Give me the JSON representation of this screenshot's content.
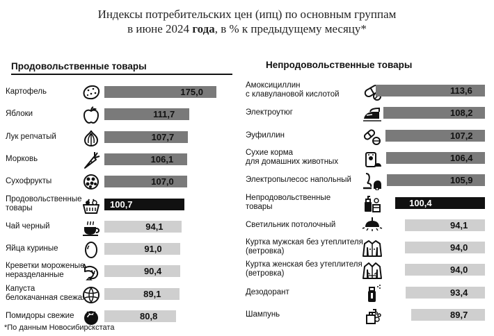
{
  "title": {
    "line1": "Индексы потребительских цен (ипц) по основным группам",
    "line2_pre": "в июне 2024 ",
    "line2_bold": "года",
    "line2_post": ", в % к предыдущему месяцу*"
  },
  "footnote": "*По данным Новосибирскстата",
  "colors": {
    "bar_dark_gray": "#7a7a7a",
    "bar_light_gray": "#cfcfcf",
    "bar_black": "#111111"
  },
  "chart_data": [
    {
      "type": "bar",
      "orientation": "horizontal",
      "title": "Продовольственные товары",
      "categories": [
        "Картофель",
        "Яблоки",
        "Лук репчатый",
        "Морковь",
        "Сухофрукты",
        "Продовольственные\nтовары",
        "Чай черный",
        "Яйца куриные",
        "Креветки мороженые\nнеразделанные",
        "Капуста\nбелокачанная свежая",
        "Помидоры свежие"
      ],
      "values": [
        175.0,
        111.7,
        107.7,
        106.1,
        107.0,
        100.7,
        94.1,
        91.0,
        90.4,
        89.1,
        80.8
      ],
      "value_labels": [
        "175,0",
        "111,7",
        "107,7",
        "106,1",
        "107,0",
        "100,7",
        "94,1",
        "91,0",
        "90,4",
        "89,1",
        "80,8"
      ],
      "icons": [
        "potato-icon",
        "apple-icon",
        "onion-icon",
        "carrot-icon",
        "dried-fruit-icon",
        "grocery-basket-icon",
        "tea-cup-icon",
        "egg-icon",
        "shrimp-icon",
        "cabbage-icon",
        "tomato-icon"
      ],
      "styles": [
        "dark",
        "dark",
        "dark",
        "dark",
        "dark",
        "total",
        "light",
        "light",
        "light",
        "light",
        "light"
      ]
    },
    {
      "type": "bar",
      "orientation": "horizontal",
      "title": "Непродовольственные товары",
      "categories": [
        "Амоксициллин\nс клавулановой кислотой",
        "Электроутюг",
        "Эуфиллин",
        "Сухие корма\nдля домашних животных",
        "Электропылесос напольный",
        "Непродовольственные\nтовары",
        "Светильник потолочный",
        "Куртка мужская без утеплителя\n(ветровка)",
        "Куртка женская без утеплителя\n(ветровка)",
        "Дезодорант",
        "Шампунь"
      ],
      "values": [
        113.6,
        108.2,
        107.2,
        106.4,
        105.9,
        100.4,
        94.1,
        94.0,
        94.0,
        93.4,
        89.7
      ],
      "value_labels": [
        "113,6",
        "108,2",
        "107,2",
        "106,4",
        "105,9",
        "100,4",
        "94,1",
        "94,0",
        "94,0",
        "93,4",
        "89,7"
      ],
      "icons": [
        "pills-icon",
        "iron-icon",
        "capsules-icon",
        "pet-food-icon",
        "vacuum-cleaner-icon",
        "household-goods-icon",
        "ceiling-lamp-icon",
        "mens-jacket-icon",
        "womens-jacket-icon",
        "deodorant-icon",
        "shampoo-icon"
      ],
      "styles": [
        "dark",
        "dark",
        "dark",
        "dark",
        "dark",
        "total",
        "light",
        "light",
        "light",
        "light",
        "light"
      ]
    }
  ]
}
